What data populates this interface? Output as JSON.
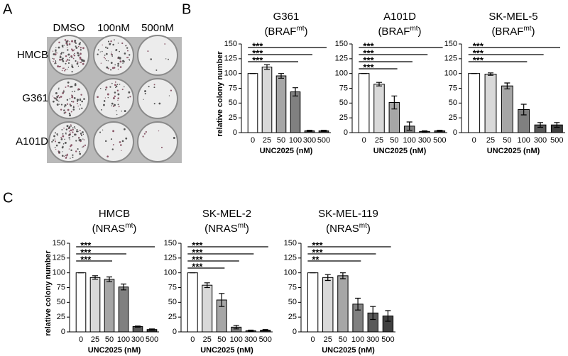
{
  "panel_labels": [
    "A",
    "B",
    "C"
  ],
  "plates": {
    "columns": [
      "DMSO",
      "100nM",
      "500nM"
    ],
    "rows": [
      "HMCB",
      "G361",
      "A101D"
    ]
  },
  "chart_data": [
    {
      "type": "bar",
      "title": "G361",
      "subtitle": {
        "base": "(BRAF",
        "sup": "mt",
        "end": ")"
      },
      "ylabel": "relative colony number",
      "xlabel": "UNC2025 (nM)",
      "categories": [
        "0",
        "25",
        "50",
        "100",
        "300",
        "500"
      ],
      "values": [
        100,
        111,
        96,
        69,
        3,
        3
      ],
      "errors": [
        0,
        4,
        4,
        7,
        1,
        1
      ],
      "colors": [
        "#ffffff",
        "#d9d9d9",
        "#a6a6a6",
        "#808080",
        "#595959",
        "#404040"
      ],
      "ylim": [
        0,
        150
      ],
      "yticks": [
        0,
        25,
        50,
        75,
        100,
        125,
        150
      ],
      "comparisons": [
        {
          "from": "0",
          "to": "500",
          "label": "***"
        },
        {
          "from": "0",
          "to": "300",
          "label": "***"
        },
        {
          "from": "0",
          "to": "100",
          "label": "***"
        }
      ]
    },
    {
      "type": "bar",
      "title": "A101D",
      "subtitle": {
        "base": "(BRAF",
        "sup": "mt",
        "end": ")"
      },
      "xlabel": "UNC2025 (nM)",
      "categories": [
        "0",
        "25",
        "50",
        "100",
        "300",
        "500"
      ],
      "values": [
        100,
        82,
        51,
        11,
        2,
        3
      ],
      "errors": [
        0,
        3,
        11,
        7,
        1,
        1
      ],
      "colors": [
        "#ffffff",
        "#d9d9d9",
        "#a6a6a6",
        "#808080",
        "#595959",
        "#404040"
      ],
      "ylim": [
        0,
        150
      ],
      "yticks": [
        0,
        25,
        50,
        75,
        100,
        125,
        150
      ],
      "comparisons": [
        {
          "from": "0",
          "to": "500",
          "label": "***"
        },
        {
          "from": "0",
          "to": "300",
          "label": "***"
        },
        {
          "from": "0",
          "to": "100",
          "label": "***"
        },
        {
          "from": "0",
          "to": "50",
          "label": "***"
        }
      ]
    },
    {
      "type": "bar",
      "title": "SK-MEL-5",
      "subtitle": {
        "base": "(BRAF",
        "sup": "mt",
        "end": ")"
      },
      "xlabel": "UNC2025 (nM)",
      "categories": [
        "0",
        "25",
        "50",
        "100",
        "300",
        "500"
      ],
      "values": [
        100,
        99,
        79,
        39,
        13,
        13
      ],
      "errors": [
        0,
        2,
        5,
        9,
        4,
        4
      ],
      "colors": [
        "#ffffff",
        "#d9d9d9",
        "#a6a6a6",
        "#808080",
        "#595959",
        "#404040"
      ],
      "ylim": [
        0,
        150
      ],
      "yticks": [
        0,
        25,
        50,
        75,
        100,
        125,
        150
      ],
      "comparisons": [
        {
          "from": "0",
          "to": "500",
          "label": "***"
        },
        {
          "from": "0",
          "to": "300",
          "label": "***"
        },
        {
          "from": "0",
          "to": "100",
          "label": "***"
        }
      ]
    },
    {
      "type": "bar",
      "title": "HMCB",
      "subtitle": {
        "base": "(NRAS",
        "sup": "mt",
        "end": ")"
      },
      "ylabel": "relative colony number",
      "xlabel": "UNC2025 (nM)",
      "categories": [
        "0",
        "25",
        "50",
        "100",
        "300",
        "500"
      ],
      "values": [
        100,
        92,
        89,
        76,
        9,
        4
      ],
      "errors": [
        0,
        3,
        4,
        5,
        1,
        1
      ],
      "colors": [
        "#ffffff",
        "#d9d9d9",
        "#a6a6a6",
        "#808080",
        "#595959",
        "#404040"
      ],
      "ylim": [
        0,
        150
      ],
      "yticks": [
        0,
        25,
        50,
        75,
        100,
        125,
        150
      ],
      "comparisons": [
        {
          "from": "0",
          "to": "500",
          "label": "***"
        },
        {
          "from": "0",
          "to": "100",
          "label": "***"
        },
        {
          "from": "0",
          "to": "50",
          "label": "***"
        }
      ]
    },
    {
      "type": "bar",
      "title": "SK-MEL-2",
      "subtitle": {
        "base": "(NRAS",
        "sup": "mt",
        "end": ")"
      },
      "xlabel": "UNC2025 (nM)",
      "categories": [
        "0",
        "25",
        "50",
        "100",
        "300",
        "500"
      ],
      "values": [
        100,
        79,
        54,
        8,
        2,
        3
      ],
      "errors": [
        0,
        4,
        11,
        3,
        1,
        1
      ],
      "colors": [
        "#ffffff",
        "#d9d9d9",
        "#a6a6a6",
        "#808080",
        "#595959",
        "#404040"
      ],
      "ylim": [
        0,
        150
      ],
      "yticks": [
        0,
        25,
        50,
        75,
        100,
        125,
        150
      ],
      "comparisons": [
        {
          "from": "0",
          "to": "500",
          "label": "***"
        },
        {
          "from": "0",
          "to": "300",
          "label": "***"
        },
        {
          "from": "0",
          "to": "100",
          "label": "***"
        },
        {
          "from": "0",
          "to": "50",
          "label": "***"
        }
      ]
    },
    {
      "type": "bar",
      "title": "SK-MEL-119",
      "subtitle": {
        "base": "(NRAS",
        "sup": "mt",
        "end": ")"
      },
      "xlabel": "UNC2025 (nM)",
      "categories": [
        "0",
        "25",
        "50",
        "100",
        "300",
        "500"
      ],
      "values": [
        100,
        92,
        95,
        47,
        32,
        27
      ],
      "errors": [
        0,
        5,
        5,
        10,
        11,
        9
      ],
      "colors": [
        "#ffffff",
        "#d9d9d9",
        "#a6a6a6",
        "#808080",
        "#595959",
        "#404040"
      ],
      "ylim": [
        0,
        150
      ],
      "yticks": [
        0,
        25,
        50,
        75,
        100,
        125,
        150
      ],
      "comparisons": [
        {
          "from": "0",
          "to": "500",
          "label": "***"
        },
        {
          "from": "0",
          "to": "300",
          "label": "***"
        },
        {
          "from": "0",
          "to": "100",
          "label": "**"
        }
      ]
    }
  ]
}
